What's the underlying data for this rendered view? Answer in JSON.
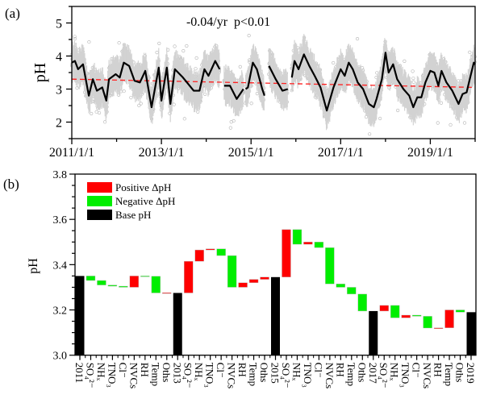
{
  "chart_data": [
    {
      "panel_label": "(a)",
      "type": "line",
      "ylabel": "pH",
      "xlim": [
        2011,
        2020
      ],
      "ylim": [
        1.5,
        5.5
      ],
      "x_ticks": [
        "2011/1/1",
        "2013/1/1",
        "2015/1/1",
        "2017/1/1",
        "2019/1/1"
      ],
      "x_tick_years": [
        2011,
        2013,
        2015,
        2017,
        2019
      ],
      "y_ticks": [
        2,
        3,
        4,
        5
      ],
      "annotation": "-0.04/yr  p<0.01",
      "colors": {
        "smoothed": "#000000",
        "observations": "#b4b4b4",
        "trend": "#ff2020"
      },
      "trend": {
        "x": [
          2011,
          2020
        ],
        "y": [
          3.3,
          3.05
        ],
        "style": "dashed"
      },
      "smoothed_segments": [
        [
          [
            2011.0,
            3.8
          ],
          [
            2011.07,
            3.85
          ],
          [
            2011.14,
            3.6
          ],
          [
            2011.25,
            3.75
          ],
          [
            2011.38,
            2.8
          ],
          [
            2011.47,
            3.3
          ],
          [
            2011.56,
            2.95
          ],
          [
            2011.68,
            3.05
          ],
          [
            2011.77,
            2.65
          ],
          [
            2011.83,
            3.3
          ],
          [
            2011.98,
            3.45
          ],
          [
            2012.07,
            3.35
          ],
          [
            2012.16,
            3.8
          ],
          [
            2012.28,
            3.7
          ],
          [
            2012.4,
            3.25
          ],
          [
            2012.52,
            3.2
          ],
          [
            2012.64,
            3.55
          ],
          [
            2012.78,
            2.45
          ],
          [
            2012.94,
            3.65
          ],
          [
            2013.0,
            2.65
          ],
          [
            2013.12,
            3.65
          ],
          [
            2013.2,
            2.55
          ],
          [
            2013.3,
            3.6
          ],
          [
            2013.48,
            3.35
          ],
          [
            2013.6,
            3.15
          ],
          [
            2013.72,
            2.95
          ],
          [
            2013.85,
            2.95
          ],
          [
            2013.96,
            3.6
          ],
          [
            2014.05,
            3.4
          ],
          [
            2014.2,
            3.85
          ],
          [
            2014.3,
            3.6
          ]
        ],
        [
          [
            2014.4,
            3.1
          ],
          [
            2014.53,
            3.1
          ],
          [
            2014.68,
            2.7
          ],
          [
            2014.83,
            3.0
          ]
        ],
        [
          [
            2014.88,
            3.0
          ],
          [
            2014.93,
            3.05
          ],
          [
            2015.04,
            3.8
          ],
          [
            2015.13,
            3.6
          ],
          [
            2015.2,
            3.25
          ],
          [
            2015.25,
            3.0
          ],
          [
            2015.3,
            2.8
          ]
        ],
        [
          [
            2015.4,
            3.7
          ],
          [
            2015.55,
            3.3
          ],
          [
            2015.7,
            2.95
          ],
          [
            2015.82,
            3.0
          ]
        ],
        [
          [
            2015.91,
            3.35
          ],
          [
            2015.97,
            3.85
          ],
          [
            2016.06,
            3.6
          ],
          [
            2016.18,
            4.05
          ],
          [
            2016.3,
            3.7
          ],
          [
            2016.42,
            3.4
          ],
          [
            2016.55,
            3.05
          ],
          [
            2016.69,
            2.35
          ],
          [
            2016.84,
            3.05
          ],
          [
            2017.0,
            3.6
          ],
          [
            2017.09,
            3.4
          ],
          [
            2017.18,
            3.8
          ],
          [
            2017.27,
            3.6
          ],
          [
            2017.38,
            3.2
          ],
          [
            2017.5,
            3.0
          ],
          [
            2017.63,
            2.55
          ],
          [
            2017.74,
            2.45
          ],
          [
            2017.8,
            2.7
          ],
          [
            2017.92,
            3.3
          ],
          [
            2018.0,
            4.1
          ],
          [
            2018.07,
            3.5
          ],
          [
            2018.17,
            3.75
          ],
          [
            2018.26,
            3.3
          ],
          [
            2018.4,
            3.0
          ],
          [
            2018.53,
            2.8
          ],
          [
            2018.62,
            2.45
          ],
          [
            2018.71,
            2.75
          ],
          [
            2018.8,
            2.75
          ],
          [
            2018.89,
            3.2
          ],
          [
            2019.0,
            3.55
          ],
          [
            2019.09,
            3.5
          ],
          [
            2019.18,
            3.1
          ],
          [
            2019.25,
            3.55
          ],
          [
            2019.36,
            3.2
          ],
          [
            2019.49,
            2.95
          ],
          [
            2019.63,
            2.55
          ],
          [
            2019.72,
            2.85
          ],
          [
            2019.81,
            2.9
          ],
          [
            2019.88,
            3.3
          ],
          [
            2019.97,
            3.8
          ],
          [
            2020.0,
            3.75
          ]
        ]
      ]
    },
    {
      "panel_label": "(b)",
      "type": "bar",
      "subtype": "waterfall",
      "ylabel": "pH",
      "ylim": [
        3.0,
        3.8
      ],
      "y_ticks": [
        "3.0",
        "3.2",
        "3.4",
        "3.6",
        "3.8"
      ],
      "legend": [
        {
          "label": "Positive ΔpH",
          "color": "#ff0000"
        },
        {
          "label": "Negative ΔpH",
          "color": "#00ee00"
        },
        {
          "label": "Base pH",
          "color": "#000000"
        }
      ],
      "legend_position": "top-left",
      "year_label_color": "#ff0000",
      "bars": [
        {
          "label": "2011",
          "kind": "base",
          "from": 3.0,
          "to": 3.35
        },
        {
          "label": "SO₄²⁻",
          "from": 3.35,
          "to": 3.33
        },
        {
          "label": "NHₓ",
          "from": 3.33,
          "to": 3.31
        },
        {
          "label": "TNO₃",
          "from": 3.31,
          "to": 3.305
        },
        {
          "label": "Cl⁻",
          "from": 3.305,
          "to": 3.3
        },
        {
          "label": "NVCs",
          "from": 3.3,
          "to": 3.35
        },
        {
          "label": "RH",
          "from": 3.35,
          "to": 3.349
        },
        {
          "label": "Temp",
          "from": 3.349,
          "to": 3.275
        },
        {
          "label": "Oths",
          "from": 3.275,
          "to": 3.276
        },
        {
          "label": "2013",
          "kind": "base",
          "from": 3.0,
          "to": 3.275
        },
        {
          "label": "SO₄²⁻",
          "from": 3.275,
          "to": 3.415
        },
        {
          "label": "NHₓ",
          "from": 3.415,
          "to": 3.465
        },
        {
          "label": "TNO₃",
          "from": 3.465,
          "to": 3.47
        },
        {
          "label": "Cl⁻",
          "from": 3.47,
          "to": 3.44
        },
        {
          "label": "NVCs",
          "from": 3.44,
          "to": 3.3
        },
        {
          "label": "RH",
          "from": 3.3,
          "to": 3.32
        },
        {
          "label": "Temp",
          "from": 3.32,
          "to": 3.335
        },
        {
          "label": "Oths",
          "from": 3.335,
          "to": 3.345
        },
        {
          "label": "2015",
          "kind": "base",
          "from": 3.0,
          "to": 3.345
        },
        {
          "label": "SO₄²⁻",
          "from": 3.345,
          "to": 3.555
        },
        {
          "label": "NHₓ",
          "from": 3.555,
          "to": 3.49
        },
        {
          "label": "TNO₃",
          "from": 3.49,
          "to": 3.5
        },
        {
          "label": "Cl⁻",
          "from": 3.5,
          "to": 3.475
        },
        {
          "label": "NVCs",
          "from": 3.475,
          "to": 3.315
        },
        {
          "label": "RH",
          "from": 3.315,
          "to": 3.3
        },
        {
          "label": "Temp",
          "from": 3.3,
          "to": 3.27
        },
        {
          "label": "Oths",
          "from": 3.27,
          "to": 3.195
        },
        {
          "label": "2017",
          "kind": "base",
          "from": 3.0,
          "to": 3.195
        },
        {
          "label": "SO₄²⁻",
          "from": 3.195,
          "to": 3.22
        },
        {
          "label": "NHₓ",
          "from": 3.22,
          "to": 3.165
        },
        {
          "label": "TNO₃",
          "from": 3.165,
          "to": 3.177
        },
        {
          "label": "Cl⁻",
          "from": 3.177,
          "to": 3.172
        },
        {
          "label": "NVCs",
          "from": 3.172,
          "to": 3.12
        },
        {
          "label": "RH",
          "from": 3.12,
          "to": 3.121
        },
        {
          "label": "Temp",
          "from": 3.121,
          "to": 3.2
        },
        {
          "label": "Oths",
          "from": 3.2,
          "to": 3.19
        },
        {
          "label": "2019",
          "kind": "base",
          "from": 3.0,
          "to": 3.19
        }
      ]
    }
  ]
}
